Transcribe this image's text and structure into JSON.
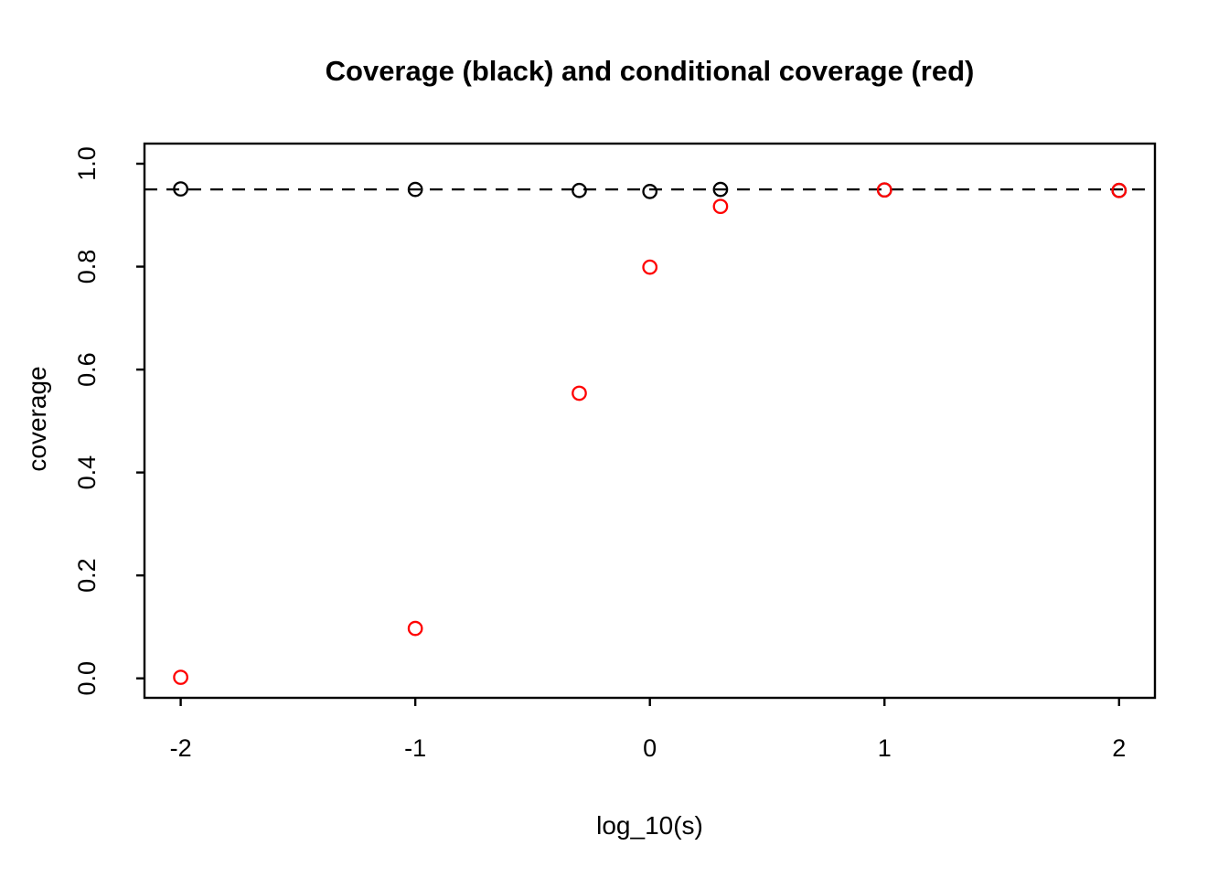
{
  "chart_data": {
    "type": "scatter",
    "title": "Coverage (black) and conditional coverage (red)",
    "xlabel": "log_10(s)",
    "ylabel": "coverage",
    "xlim": [
      -2,
      2
    ],
    "ylim": [
      0.0,
      1.0
    ],
    "x_ticks": [
      {
        "value": -2,
        "label": "-2"
      },
      {
        "value": -1,
        "label": "-1"
      },
      {
        "value": 0,
        "label": "0"
      },
      {
        "value": 1,
        "label": "1"
      },
      {
        "value": 2,
        "label": "2"
      }
    ],
    "y_ticks": [
      {
        "value": 0.0,
        "label": "0.0"
      },
      {
        "value": 0.2,
        "label": "0.2"
      },
      {
        "value": 0.4,
        "label": "0.4"
      },
      {
        "value": 0.6,
        "label": "0.6"
      },
      {
        "value": 0.8,
        "label": "0.8"
      },
      {
        "value": 1.0,
        "label": "1.0"
      }
    ],
    "grid": false,
    "legend": "none (encoded in title)",
    "reference_line": {
      "y": 0.95,
      "style": "dashed",
      "color": "#000000"
    },
    "series": [
      {
        "name": "coverage",
        "color": "#000000",
        "marker": "open-circle",
        "x": [
          -2,
          -1,
          -0.301,
          0,
          0.301,
          1,
          2
        ],
        "y": [
          0.951,
          0.95,
          0.948,
          0.946,
          0.95,
          0.949,
          0.948
        ]
      },
      {
        "name": "conditional coverage",
        "color": "#FF0000",
        "marker": "open-circle",
        "x": [
          -2,
          -1,
          -0.301,
          0,
          0.301,
          1,
          2
        ],
        "y": [
          0.002,
          0.097,
          0.554,
          0.799,
          0.917,
          0.949,
          0.948
        ]
      }
    ]
  }
}
